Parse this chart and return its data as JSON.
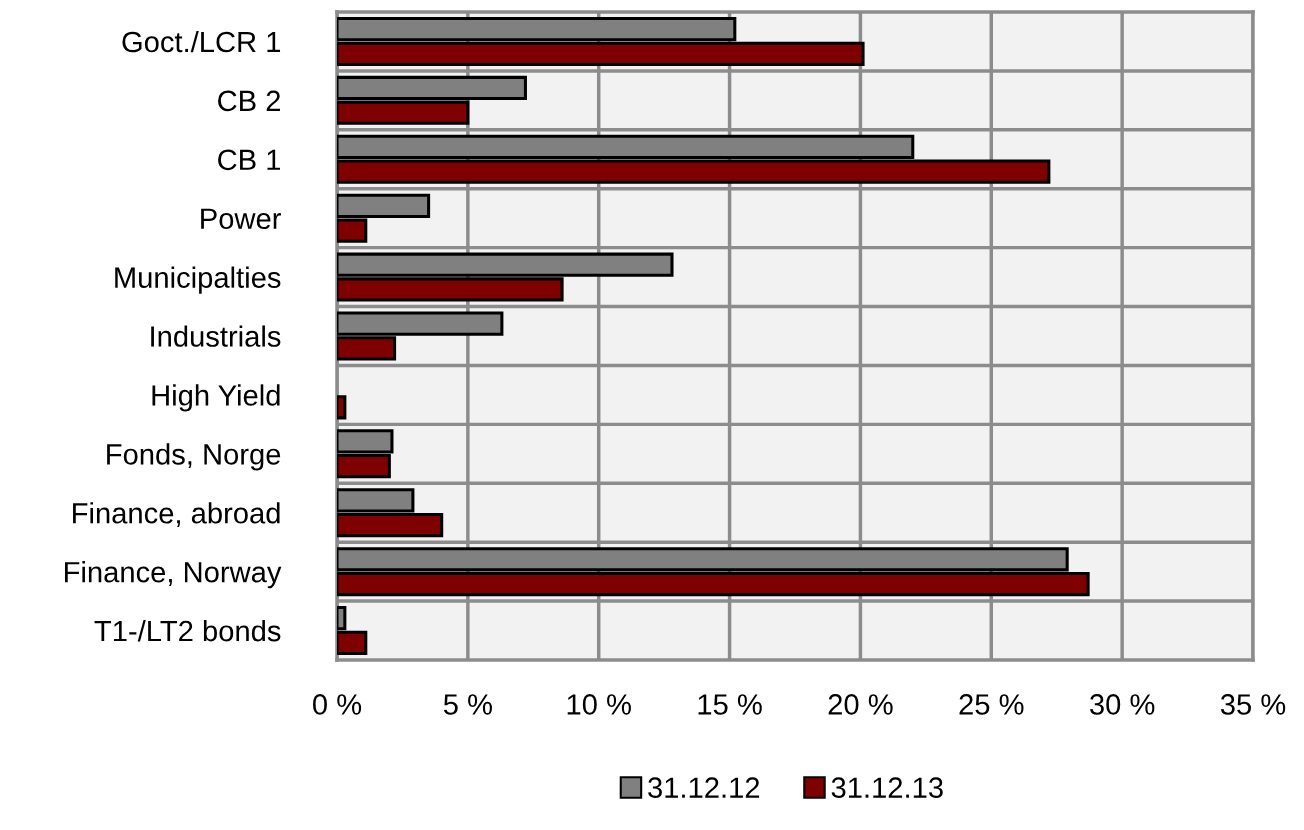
{
  "chart_data": {
    "type": "bar",
    "orientation": "horizontal",
    "categories": [
      "Goct./LCR 1",
      "CB 2",
      "CB 1",
      "Power",
      "Municipalties",
      "Industrials",
      "High Yield",
      "Fonds, Norge",
      "Finance, abroad",
      "Finance, Norway",
      "T1-/LT2 bonds"
    ],
    "series": [
      {
        "name": "31.12.12",
        "color": "#808080",
        "values": [
          15.2,
          7.2,
          22.0,
          3.5,
          12.8,
          6.3,
          null,
          2.1,
          2.9,
          27.9,
          0.3
        ]
      },
      {
        "name": "31.12.13",
        "color": "#7f0000",
        "values": [
          20.1,
          5.0,
          27.2,
          1.1,
          8.6,
          2.2,
          0.3,
          2.0,
          4.0,
          28.7,
          1.1
        ]
      }
    ],
    "xlim": [
      0,
      35
    ],
    "xticks": [
      {
        "value": 0,
        "label": "0 %"
      },
      {
        "value": 5,
        "label": "5 %"
      },
      {
        "value": 10,
        "label": "10 %"
      },
      {
        "value": 15,
        "label": "15 %"
      },
      {
        "value": 20,
        "label": "20 %"
      },
      {
        "value": 25,
        "label": "25 %"
      },
      {
        "value": 30,
        "label": "30 %"
      },
      {
        "value": 35,
        "label": "35 %"
      }
    ],
    "grid": true,
    "legend": "bottom"
  }
}
